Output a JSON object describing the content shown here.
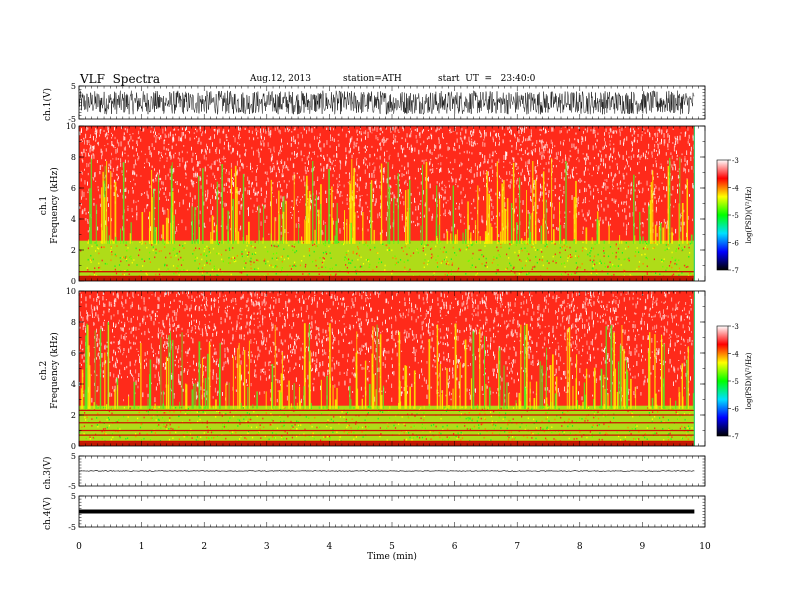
{
  "header": {
    "title": "VLF  Spectra",
    "date": "Aug.12, 2013",
    "station": "station=ATH",
    "start": "start  UT  =   23:40:0"
  },
  "chart_data": [
    {
      "type": "line",
      "panel": "ch1-waveform",
      "ylabel": "ch.1(V)",
      "ylim": [
        -5,
        5
      ],
      "yticks": [
        "5",
        "-5"
      ],
      "x_range_min": [
        0,
        9.83
      ],
      "signal": "dense broadband noise filling approximately -3.5 to +3.5 V"
    },
    {
      "type": "heatmap",
      "panel": "ch1-spectrogram",
      "ylabel": "Frequency (kHz)",
      "channel_label": "ch.1",
      "ylim": [
        0,
        10
      ],
      "yticks": [
        "0",
        "2",
        "4",
        "6",
        "8",
        "10"
      ],
      "x_range_min": [
        0,
        9.83
      ],
      "colorbar": {
        "label": "log(PSD)(V²/Hz)",
        "ticks": [
          "-3",
          "-4",
          "-5",
          "-6",
          "-7"
        ],
        "range": [
          -7,
          -3
        ],
        "colors": [
          "#000000",
          "#0000ff",
          "#00e0ff",
          "#00ff00",
          "#ffff00",
          "#ff0000",
          "#ffffff"
        ]
      },
      "features": {
        "background_level": "red (about -4 log PSD) across 3-10 kHz",
        "low_band": "green/yellow (about -5) between 0.5 and 2.5 kHz",
        "lines_khz": [
          0.3,
          0.6
        ]
      }
    },
    {
      "type": "heatmap",
      "panel": "ch2-spectrogram",
      "ylabel": "Frequency (kHz)",
      "channel_label": "ch.2",
      "ylim": [
        0,
        10
      ],
      "yticks": [
        "0",
        "2",
        "4",
        "6",
        "8",
        "10"
      ],
      "x_range_min": [
        0,
        9.83
      ],
      "colorbar": {
        "label": "log(PSD)(V²/Hz)",
        "ticks": [
          "-3",
          "-4",
          "-5",
          "-6",
          "-7"
        ],
        "range": [
          -7,
          -3
        ]
      },
      "features": {
        "background_level": "red (about -4 log PSD) across 3-10 kHz",
        "low_band": "green/yellow (about -5) between 0.3 and 2.5 kHz",
        "lines_khz": [
          0.3,
          0.7,
          1.0,
          1.5,
          2.0,
          2.3
        ]
      }
    },
    {
      "type": "line",
      "panel": "ch3-waveform",
      "ylabel": "ch.3(V)",
      "ylim": [
        -5,
        5
      ],
      "yticks": [
        "5",
        "-5"
      ],
      "x_range_min": [
        0,
        9.83
      ],
      "signal": "nearly flat trace near 0 V with small fluctuations"
    },
    {
      "type": "line",
      "panel": "ch4-waveform",
      "ylabel": "ch.4(V)",
      "ylim": [
        -5,
        5
      ],
      "yticks": [
        "5",
        "-5"
      ],
      "x_range_min": [
        0,
        9.83
      ],
      "signal": "constant thick line at 0 V"
    }
  ],
  "xaxis": {
    "label": "Time  (min)",
    "ticks": [
      "0",
      "1",
      "2",
      "3",
      "4",
      "5",
      "6",
      "7",
      "8",
      "9",
      "10"
    ],
    "range": [
      0,
      10
    ]
  }
}
